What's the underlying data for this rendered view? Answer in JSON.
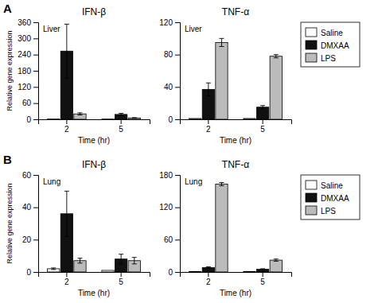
{
  "chart_data": [
    {
      "type": "bar",
      "title": "IFN-β",
      "panel_label": "A",
      "annotations": [
        "Liver"
      ],
      "x_label": "Time (hr)",
      "y_label": "Relative gene expression",
      "categories": [
        "2",
        "5"
      ],
      "series": [
        {
          "name": "Saline",
          "color": "#ffffff",
          "values": [
            1,
            1
          ],
          "errors": [
            0,
            0
          ]
        },
        {
          "name": "DMXAA",
          "color": "#111111",
          "values": [
            253,
            18
          ],
          "errors": [
            100,
            4
          ]
        },
        {
          "name": "LPS",
          "color": "#bbbbbb",
          "values": [
            20,
            5
          ],
          "errors": [
            4,
            1
          ]
        }
      ],
      "ylim": [
        0,
        360
      ],
      "yticks": [
        0,
        60,
        120,
        180,
        240,
        300,
        360
      ],
      "grid": false,
      "legend": "right"
    },
    {
      "type": "bar",
      "title": "TNF-α",
      "annotations": [
        "Liver"
      ],
      "x_label": "Time (hr)",
      "categories": [
        "2",
        "5"
      ],
      "series": [
        {
          "name": "Saline",
          "color": "#ffffff",
          "values": [
            1,
            1
          ],
          "errors": [
            0,
            0
          ]
        },
        {
          "name": "DMXAA",
          "color": "#111111",
          "values": [
            37,
            15
          ],
          "errors": [
            8,
            2
          ]
        },
        {
          "name": "LPS",
          "color": "#bbbbbb",
          "values": [
            95,
            78
          ],
          "errors": [
            5,
            2
          ]
        }
      ],
      "ylim": [
        0,
        120
      ],
      "yticks": [
        0,
        40,
        80,
        120
      ],
      "grid": false
    },
    {
      "type": "bar",
      "title": "IFN-β",
      "panel_label": "B",
      "annotations": [
        "Lung"
      ],
      "x_label": "Time (hr)",
      "y_label": "Relative gene expression",
      "categories": [
        "2",
        "5"
      ],
      "series": [
        {
          "name": "Saline",
          "color": "#ffffff",
          "values": [
            2,
            1
          ],
          "errors": [
            0.5,
            0
          ]
        },
        {
          "name": "DMXAA",
          "color": "#111111",
          "values": [
            36,
            8
          ],
          "errors": [
            14,
            3
          ]
        },
        {
          "name": "LPS",
          "color": "#bbbbbb",
          "values": [
            7,
            7
          ],
          "errors": [
            1.5,
            2
          ]
        }
      ],
      "ylim": [
        0,
        60
      ],
      "yticks": [
        0,
        20,
        40,
        60
      ],
      "grid": false,
      "legend": "right"
    },
    {
      "type": "bar",
      "title": "TNF-α",
      "annotations": [
        "Lung"
      ],
      "x_label": "Time (hr)",
      "categories": [
        "2",
        "5"
      ],
      "series": [
        {
          "name": "Saline",
          "color": "#ffffff",
          "values": [
            1,
            1
          ],
          "errors": [
            0,
            0
          ]
        },
        {
          "name": "DMXAA",
          "color": "#111111",
          "values": [
            8,
            5
          ],
          "errors": [
            1.5,
            1
          ]
        },
        {
          "name": "LPS",
          "color": "#bbbbbb",
          "values": [
            163,
            22
          ],
          "errors": [
            3,
            2
          ]
        }
      ],
      "ylim": [
        0,
        180
      ],
      "yticks": [
        0,
        60,
        120,
        180
      ],
      "grid": false
    }
  ]
}
